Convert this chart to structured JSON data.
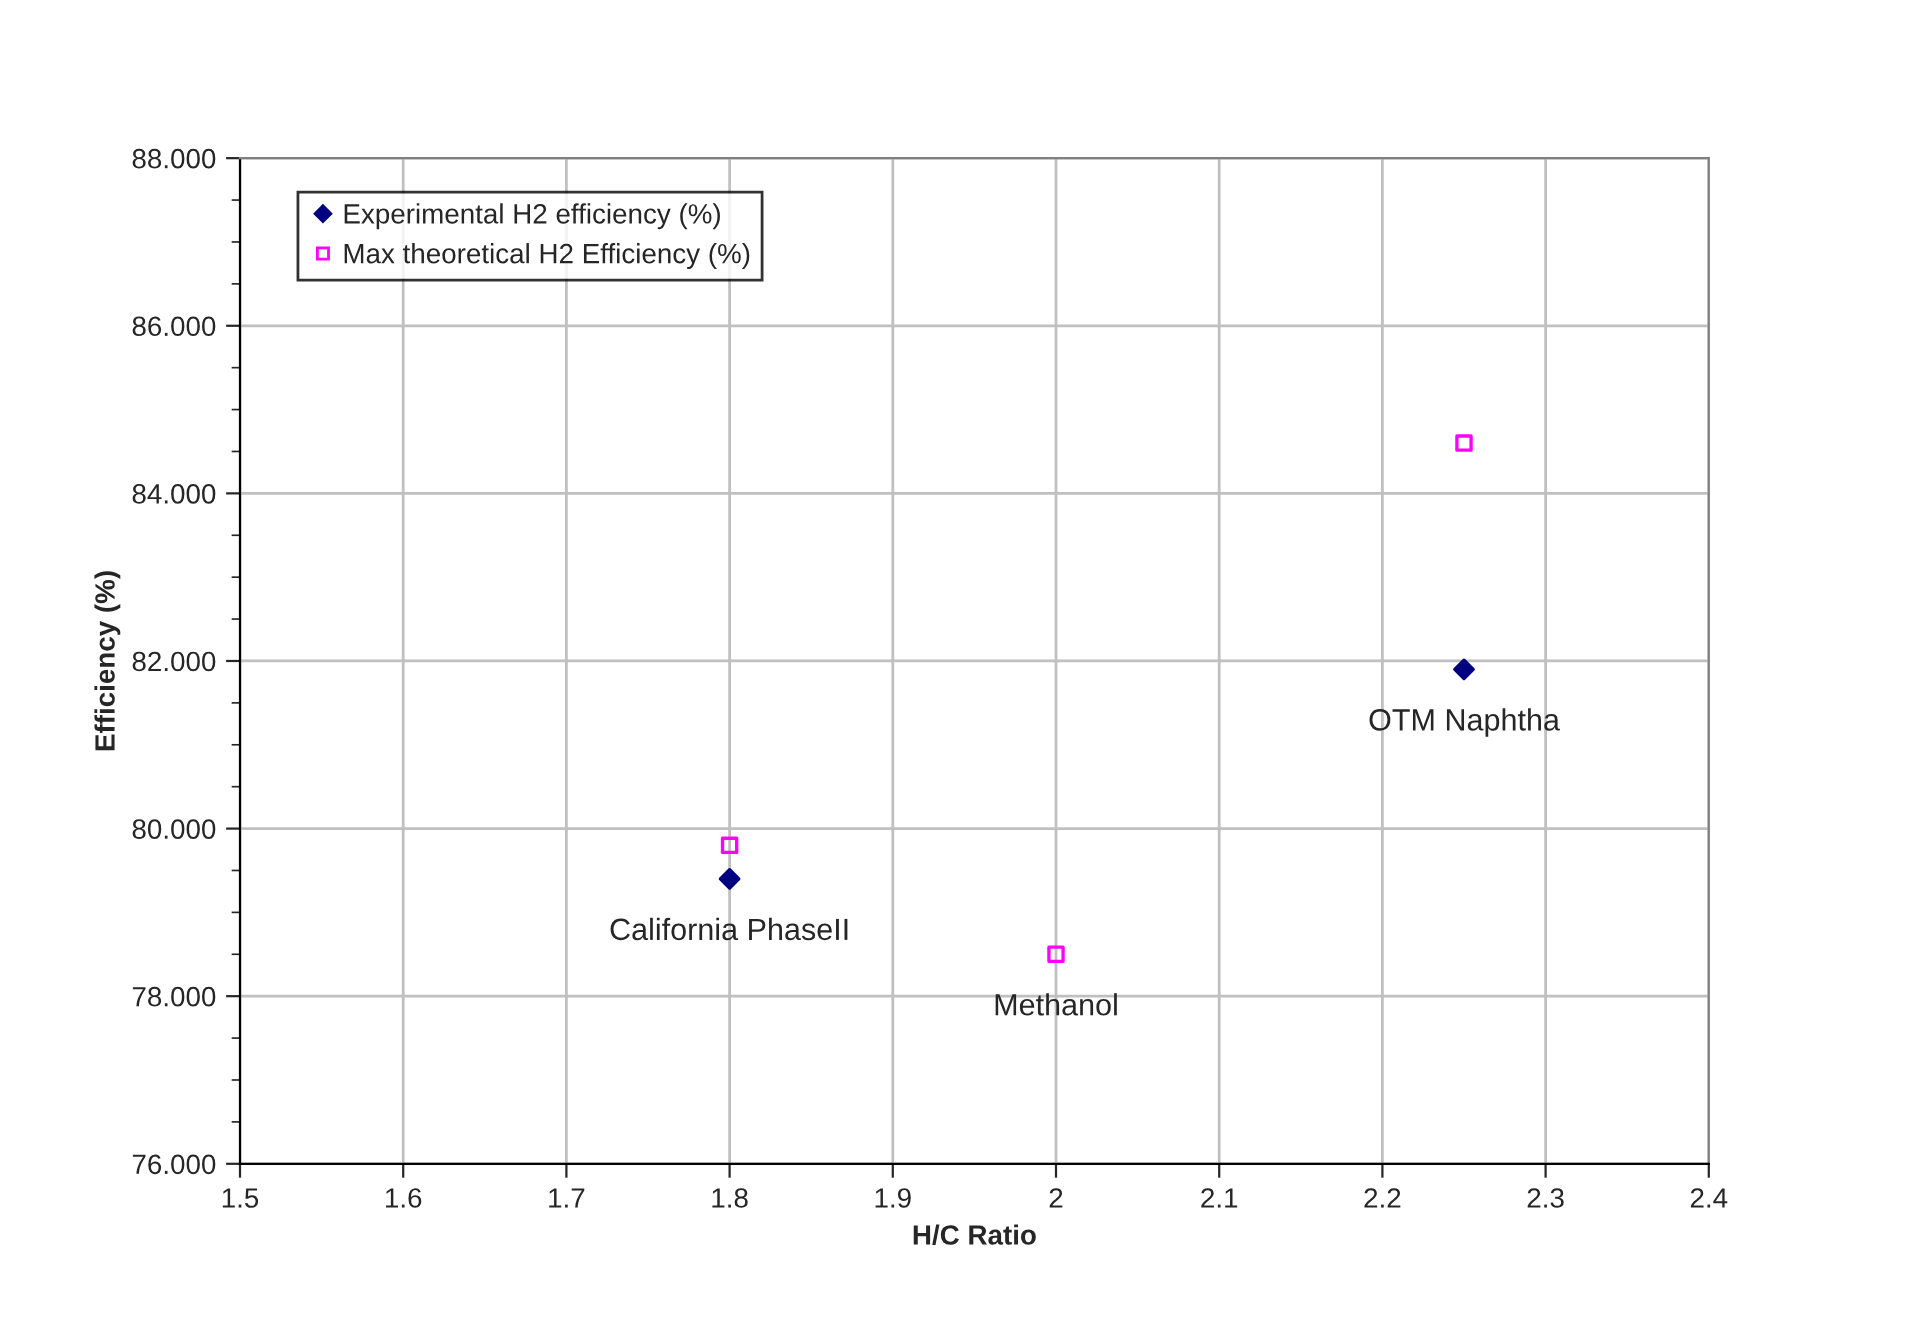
{
  "chart_data": {
    "type": "scatter",
    "xlabel": "H/C Ratio",
    "ylabel": "Efficiency (%)",
    "series": [
      {
        "name": "Experimental H2 efficiency (%)",
        "color": "#000080",
        "marker": "diamond",
        "x": [
          1.8,
          2.0,
          2.25
        ],
        "values": [
          79.4,
          null,
          81.9
        ]
      },
      {
        "name": "Max theoretical H2 Efficiency (%)",
        "color": "#ff00ff",
        "marker": "square",
        "x": [
          1.8,
          2.0,
          2.25
        ],
        "values": [
          79.8,
          78.5,
          84.6
        ]
      }
    ],
    "annotations": [
      {
        "text": "California PhaseII",
        "x": 1.8,
        "y": 79.4
      },
      {
        "text": "Methanol",
        "x": 2.0,
        "y": 78.5
      },
      {
        "text": "OTM Naphtha",
        "x": 2.25,
        "y": 81.9
      }
    ],
    "xlim": [
      1.5,
      2.4
    ],
    "xticks": [
      1.5,
      1.6,
      1.7,
      1.8,
      1.9,
      2,
      2.1,
      2.2,
      2.3,
      2.4
    ],
    "ylim": [
      76,
      88
    ],
    "yticks": [
      {
        "value": 76,
        "label": "76.000"
      },
      {
        "value": 78,
        "label": "78.000"
      },
      {
        "value": 80,
        "label": "80.000"
      },
      {
        "value": 82,
        "label": "82.000"
      },
      {
        "value": 84,
        "label": "84.000"
      },
      {
        "value": 86,
        "label": "86.000"
      },
      {
        "value": 88,
        "label": "88.000"
      }
    ],
    "grid": true,
    "legend": "top left"
  }
}
